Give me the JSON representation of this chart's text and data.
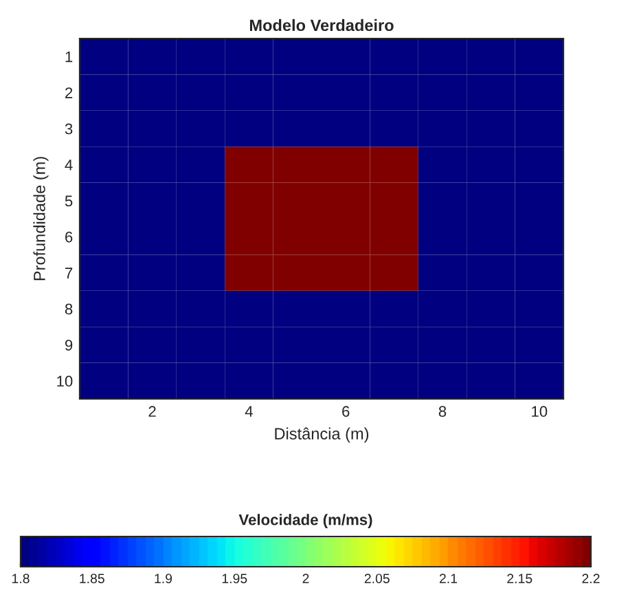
{
  "chart_data": {
    "type": "heatmap",
    "title": "Modelo Verdadeiro",
    "xlabel": "Distância (m)",
    "ylabel": "Profundidade (m)",
    "clabel": "Velocidade (m/ms)",
    "categories": [
      null,
      "2",
      null,
      "4",
      null,
      "6",
      null,
      "8",
      null,
      "10"
    ],
    "y_categories": [
      "1",
      "2",
      "3",
      "4",
      "5",
      "6",
      "7",
      "8",
      "9",
      "10"
    ],
    "cells": [
      [
        1.8,
        1.8,
        1.8,
        1.8,
        1.8,
        1.8,
        1.8,
        1.8,
        1.8,
        1.8
      ],
      [
        1.8,
        1.8,
        1.8,
        1.8,
        1.8,
        1.8,
        1.8,
        1.8,
        1.8,
        1.8
      ],
      [
        1.8,
        1.8,
        1.8,
        1.8,
        1.8,
        1.8,
        1.8,
        1.8,
        1.8,
        1.8
      ],
      [
        1.8,
        1.8,
        1.8,
        2.2,
        2.2,
        2.2,
        2.2,
        1.8,
        1.8,
        1.8
      ],
      [
        1.8,
        1.8,
        1.8,
        2.2,
        2.2,
        2.2,
        2.2,
        1.8,
        1.8,
        1.8
      ],
      [
        1.8,
        1.8,
        1.8,
        2.2,
        2.2,
        2.2,
        2.2,
        1.8,
        1.8,
        1.8
      ],
      [
        1.8,
        1.8,
        1.8,
        2.2,
        2.2,
        2.2,
        2.2,
        1.8,
        1.8,
        1.8
      ],
      [
        1.8,
        1.8,
        1.8,
        1.8,
        1.8,
        1.8,
        1.8,
        1.8,
        1.8,
        1.8
      ],
      [
        1.8,
        1.8,
        1.8,
        1.8,
        1.8,
        1.8,
        1.8,
        1.8,
        1.8,
        1.8
      ],
      [
        1.8,
        1.8,
        1.8,
        1.8,
        1.8,
        1.8,
        1.8,
        1.8,
        1.8,
        1.8
      ]
    ],
    "clim": [
      1.8,
      2.2
    ],
    "cticks": [
      1.8,
      1.85,
      1.9,
      1.95,
      2,
      2.05,
      2.1,
      2.15,
      2.2
    ]
  }
}
